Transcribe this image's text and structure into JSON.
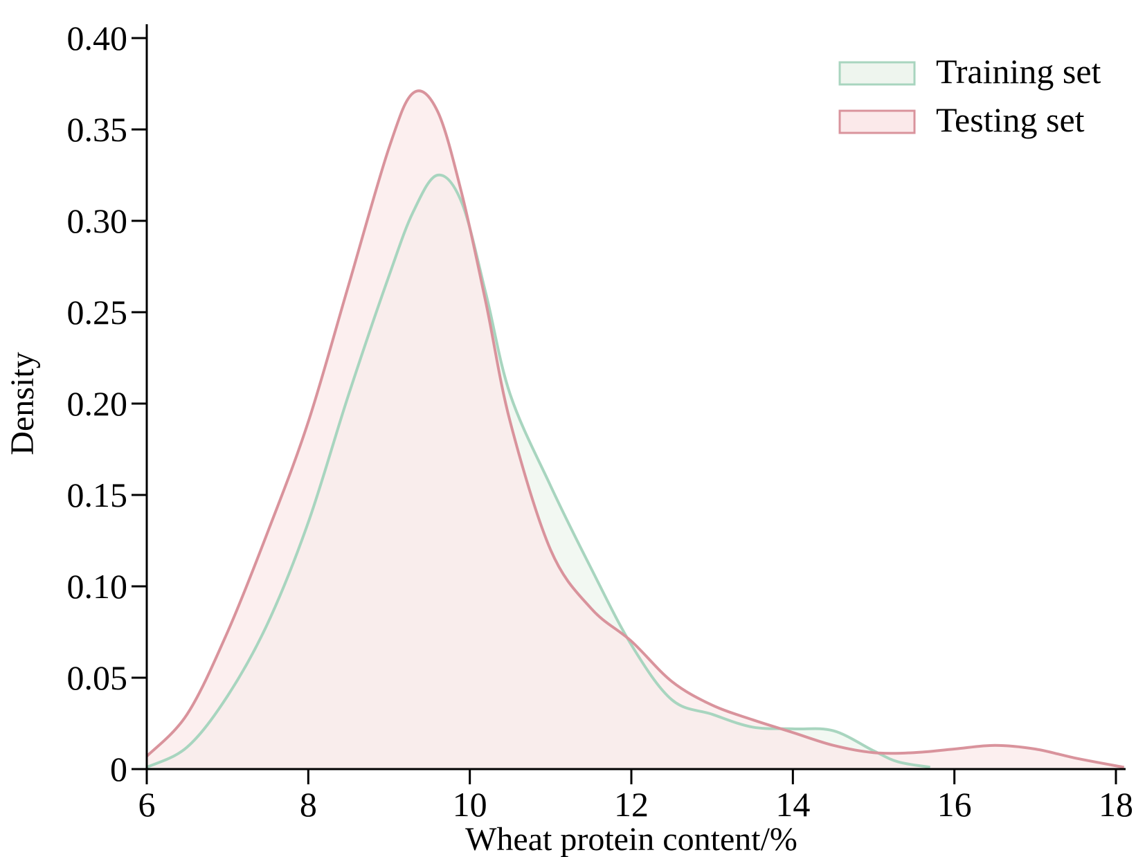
{
  "chart_data": {
    "type": "area",
    "xlabel": "Wheat protein content/%",
    "ylabel": "Density",
    "xlim": [
      6,
      18
    ],
    "ylim": [
      0,
      0.4
    ],
    "x_ticks": [
      "6",
      "8",
      "10",
      "12",
      "14",
      "16",
      "18"
    ],
    "y_ticks": [
      "0",
      "0.05",
      "0.10",
      "0.15",
      "0.20",
      "0.25",
      "0.30",
      "0.35",
      "0.40"
    ],
    "grid": false,
    "legend_position": "top-right",
    "series": [
      {
        "name": "Training set",
        "stroke": "#a8d5bf",
        "fill": "#eef5ee",
        "x": [
          6.0,
          6.5,
          7.0,
          7.5,
          8.0,
          8.5,
          9.0,
          9.3,
          9.6,
          9.9,
          10.2,
          10.5,
          11.0,
          11.5,
          12.0,
          12.5,
          13.0,
          13.5,
          14.0,
          14.5,
          15.0,
          15.3,
          15.7
        ],
        "y": [
          0.001,
          0.012,
          0.04,
          0.08,
          0.135,
          0.205,
          0.27,
          0.305,
          0.325,
          0.31,
          0.26,
          0.205,
          0.155,
          0.11,
          0.068,
          0.038,
          0.03,
          0.023,
          0.022,
          0.021,
          0.01,
          0.004,
          0.001
        ]
      },
      {
        "name": "Testing set",
        "stroke": "#d9939c",
        "fill": "#fbe9ea",
        "x": [
          6.0,
          6.5,
          7.0,
          7.5,
          8.0,
          8.5,
          9.0,
          9.3,
          9.6,
          9.9,
          10.2,
          10.5,
          11.0,
          11.5,
          12.0,
          12.5,
          13.0,
          13.5,
          14.0,
          14.5,
          15.0,
          15.5,
          16.0,
          16.5,
          17.0,
          17.5,
          18.1
        ],
        "y": [
          0.007,
          0.03,
          0.075,
          0.13,
          0.19,
          0.265,
          0.34,
          0.37,
          0.36,
          0.315,
          0.255,
          0.19,
          0.12,
          0.088,
          0.07,
          0.048,
          0.035,
          0.027,
          0.02,
          0.013,
          0.009,
          0.009,
          0.011,
          0.013,
          0.011,
          0.006,
          0.001
        ]
      }
    ]
  }
}
